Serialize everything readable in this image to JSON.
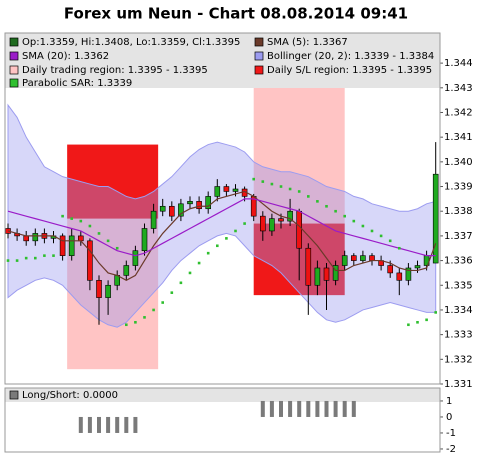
{
  "chart_data": [
    {
      "type": "candlestick",
      "title": "Forex um Neun - Chart 08.08.2014 09:41",
      "ylim": [
        1.331,
        1.34522
      ],
      "yticks": [
        1.331,
        1.332,
        1.333,
        1.334,
        1.335,
        1.336,
        1.337,
        1.338,
        1.339,
        {
          "value": 1.34,
          "label": "1.340"
        },
        1.341,
        1.342,
        1.343,
        1.344
      ],
      "candles": {
        "name": "Op:1.3359, Hi:1.3408, Lo:1.3359, Cl:1.3395",
        "color": "#1f6b1f",
        "color_up": "#1faa1f",
        "color_down": "#ee1111",
        "open": [
          1.3373,
          1.3371,
          1.337,
          1.3368,
          1.3371,
          1.3369,
          1.337,
          1.3362,
          1.337,
          1.3368,
          1.3352,
          1.3345,
          1.335,
          1.3354,
          1.3358,
          1.3364,
          1.3373,
          1.338,
          1.3382,
          1.3378,
          1.3383,
          1.3384,
          1.3381,
          1.3386,
          1.339,
          1.3388,
          1.3389,
          1.3386,
          1.3378,
          1.3372,
          1.3377,
          1.3376,
          1.338,
          1.3365,
          1.335,
          1.3357,
          1.3352,
          1.3358,
          1.3362,
          1.336,
          1.3362,
          1.336,
          1.3358,
          1.3355,
          1.3352,
          1.3357,
          1.3358,
          1.3359
        ],
        "high": [
          1.3375,
          1.3373,
          1.3372,
          1.3373,
          1.3373,
          1.3372,
          1.3371,
          1.3373,
          1.3372,
          1.3369,
          1.3354,
          1.3352,
          1.3356,
          1.336,
          1.3366,
          1.3375,
          1.3383,
          1.3385,
          1.3384,
          1.3385,
          1.3386,
          1.3386,
          1.3388,
          1.3393,
          1.3391,
          1.3391,
          1.339,
          1.3387,
          1.338,
          1.3379,
          1.3379,
          1.3385,
          1.3381,
          1.3367,
          1.336,
          1.3359,
          1.336,
          1.3364,
          1.3363,
          1.3364,
          1.3363,
          1.3362,
          1.336,
          1.3357,
          1.3359,
          1.336,
          1.3364,
          1.3408
        ],
        "low": [
          1.3369,
          1.3368,
          1.3366,
          1.3366,
          1.3367,
          1.3367,
          1.336,
          1.336,
          1.3366,
          1.3348,
          1.3334,
          1.3338,
          1.3348,
          1.3352,
          1.3356,
          1.3362,
          1.3371,
          1.3378,
          1.3376,
          1.3376,
          1.3381,
          1.3379,
          1.3379,
          1.3384,
          1.3386,
          1.3386,
          1.3384,
          1.3376,
          1.3368,
          1.337,
          1.3373,
          1.3374,
          1.3352,
          1.3338,
          1.3346,
          1.334,
          1.335,
          1.3356,
          1.3358,
          1.3359,
          1.3358,
          1.3356,
          1.3353,
          1.3346,
          1.335,
          1.3355,
          1.3356,
          1.3359
        ],
        "close": [
          1.3371,
          1.337,
          1.3368,
          1.3371,
          1.3369,
          1.337,
          1.3362,
          1.337,
          1.3368,
          1.3352,
          1.3345,
          1.335,
          1.3354,
          1.3358,
          1.3364,
          1.3373,
          1.338,
          1.3382,
          1.3378,
          1.3383,
          1.3384,
          1.3381,
          1.3386,
          1.339,
          1.3388,
          1.3389,
          1.3386,
          1.3378,
          1.3372,
          1.3377,
          1.3376,
          1.338,
          1.3365,
          1.335,
          1.3357,
          1.3352,
          1.3358,
          1.3362,
          1.336,
          1.3362,
          1.336,
          1.3358,
          1.3355,
          1.3352,
          1.3357,
          1.3358,
          1.3362,
          1.3395
        ]
      },
      "lines": [
        {
          "name": "SMA (5): 1.3367",
          "color": "#6b3a2a",
          "values": [
            1.3372,
            1.3371,
            1.337,
            1.337,
            1.337,
            1.337,
            1.3368,
            1.3368,
            1.3368,
            1.3364,
            1.3359,
            1.3355,
            1.3354,
            1.3352,
            1.3354,
            1.336,
            1.3366,
            1.3371,
            1.3375,
            1.3379,
            1.3381,
            1.3382,
            1.3382,
            1.3385,
            1.3386,
            1.3387,
            1.3388,
            1.3386,
            1.3383,
            1.338,
            1.3378,
            1.3377,
            1.3374,
            1.337,
            1.3366,
            1.3361,
            1.3356,
            1.3356,
            1.3358,
            1.3359,
            1.336,
            1.336,
            1.3359,
            1.3357,
            1.3356,
            1.3356,
            1.3357,
            1.3367
          ]
        },
        {
          "name": "SMA (20): 1.3362",
          "color": "#9a1cc8",
          "values": [
            1.338,
            1.3379,
            1.3378,
            1.3377,
            1.3376,
            1.3375,
            1.3374,
            1.3373,
            1.3372,
            1.337,
            1.3368,
            1.3366,
            1.3364,
            1.3363,
            1.3362,
            1.3363,
            1.3365,
            1.3367,
            1.3369,
            1.3371,
            1.3373,
            1.3375,
            1.3377,
            1.3379,
            1.3381,
            1.3383,
            1.3385,
            1.3385,
            1.3384,
            1.3383,
            1.3382,
            1.3381,
            1.338,
            1.3378,
            1.3376,
            1.3374,
            1.3372,
            1.3371,
            1.337,
            1.3369,
            1.3368,
            1.3367,
            1.3366,
            1.3365,
            1.3364,
            1.3363,
            1.3362,
            1.3362
          ]
        }
      ],
      "band": {
        "name": "Bollinger (20, 2): 1.3339 - 1.3384",
        "color": "#9c9cf0",
        "upper": [
          1.3423,
          1.3418,
          1.341,
          1.3404,
          1.3398,
          1.3396,
          1.3394,
          1.3393,
          1.3392,
          1.3391,
          1.339,
          1.339,
          1.3388,
          1.3386,
          1.3385,
          1.3386,
          1.3388,
          1.3391,
          1.3394,
          1.3398,
          1.3402,
          1.3405,
          1.3407,
          1.3408,
          1.3407,
          1.3406,
          1.3404,
          1.34,
          1.3398,
          1.3397,
          1.3396,
          1.3396,
          1.3395,
          1.3394,
          1.3392,
          1.339,
          1.3389,
          1.3388,
          1.3386,
          1.3385,
          1.3383,
          1.3382,
          1.3381,
          1.338,
          1.338,
          1.3381,
          1.3383,
          1.3384
        ],
        "lower": [
          1.3345,
          1.3348,
          1.335,
          1.3352,
          1.3353,
          1.3352,
          1.335,
          1.3346,
          1.3342,
          1.3339,
          1.3336,
          1.3334,
          1.3333,
          1.3335,
          1.3339,
          1.3343,
          1.3347,
          1.3351,
          1.3356,
          1.336,
          1.3363,
          1.3366,
          1.3368,
          1.337,
          1.3371,
          1.337,
          1.3366,
          1.3362,
          1.336,
          1.3358,
          1.3355,
          1.3351,
          1.3347,
          1.3343,
          1.3339,
          1.3336,
          1.3335,
          1.3336,
          1.3338,
          1.334,
          1.3341,
          1.3342,
          1.3343,
          1.3342,
          1.3341,
          1.334,
          1.3339,
          1.3339
        ]
      },
      "regions": [
        {
          "name": "Daily trading region: 1.3395 - 1.3395",
          "color": "#ffc4c4",
          "spans": [
            {
              "x0": 6.5,
              "x1": 16.5,
              "low": 1.3316,
              "high": 1.3377
            },
            {
              "x0": 27,
              "x1": 37,
              "low": 1.3375,
              "high": 1.3452
            }
          ]
        },
        {
          "name": "Daily S/L region: 1.3395 - 1.3395",
          "color": "#f01818",
          "spans": [
            {
              "x0": 6.5,
              "x1": 16.5,
              "low": 1.3377,
              "high": 1.3407
            },
            {
              "x0": 27,
              "x1": 37,
              "low": 1.3346,
              "high": 1.3375
            }
          ]
        }
      ],
      "sar": {
        "name": "Parabolic SAR: 1.3339",
        "color": "#2fbf2f",
        "values": [
          1.336,
          1.336,
          1.3361,
          1.3361,
          1.3362,
          1.3362,
          1.3378,
          1.3377,
          1.3376,
          1.3374,
          1.3371,
          1.3368,
          1.3365,
          1.3334,
          1.3335,
          1.3337,
          1.334,
          1.3343,
          1.3347,
          1.3351,
          1.3355,
          1.3359,
          1.3363,
          1.3366,
          1.3369,
          1.3372,
          1.3375,
          1.3393,
          1.3392,
          1.3391,
          1.339,
          1.3389,
          1.3388,
          1.3386,
          1.3384,
          1.3382,
          1.338,
          1.3378,
          1.3376,
          1.3374,
          1.3372,
          1.337,
          1.3368,
          1.3365,
          1.3334,
          1.3335,
          1.3336,
          1.3339
        ]
      }
    },
    {
      "type": "bar",
      "name": "Long/Short: 0.0000",
      "color": "#7a7a7a",
      "ylim": [
        -2.19,
        1.81
      ],
      "yticks": [
        1,
        0,
        -1,
        -2
      ],
      "values": [
        0,
        0,
        0,
        0,
        0,
        0,
        0,
        0,
        -1,
        -1,
        -1,
        -1,
        -1,
        -1,
        -1,
        0,
        0,
        0,
        0,
        0,
        0,
        0,
        0,
        0,
        0,
        0,
        0,
        0,
        1,
        1,
        1,
        1,
        1,
        1,
        1,
        1,
        1,
        1,
        1,
        0,
        0,
        0,
        0,
        0,
        0,
        0,
        0,
        0
      ]
    }
  ]
}
